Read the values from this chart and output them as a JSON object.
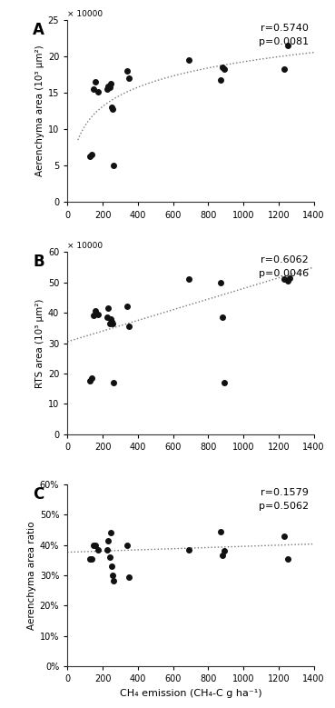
{
  "panel_A": {
    "label": "A",
    "x": [
      130,
      140,
      150,
      160,
      175,
      225,
      230,
      240,
      245,
      250,
      255,
      260,
      340,
      350,
      690,
      870,
      880,
      890,
      1230,
      1250
    ],
    "y": [
      6.3,
      6.5,
      15.5,
      16.5,
      15.2,
      15.5,
      15.9,
      15.8,
      16.2,
      13.0,
      12.8,
      5.0,
      18.0,
      17.0,
      19.5,
      16.8,
      18.5,
      18.3,
      18.2,
      21.5
    ],
    "r": 0.574,
    "p": 0.0081,
    "ylabel": "Aerenchyma area (10³ μm²)",
    "ylabel_scale": "× 10000",
    "ylim": [
      0,
      25
    ],
    "yticks": [
      0,
      5,
      10,
      15,
      20,
      25
    ],
    "use_log": true
  },
  "panel_B": {
    "label": "B",
    "x": [
      130,
      140,
      150,
      160,
      175,
      225,
      230,
      240,
      245,
      250,
      255,
      260,
      340,
      350,
      690,
      870,
      880,
      890,
      1230,
      1250,
      1260
    ],
    "y": [
      17.5,
      18.5,
      39.0,
      40.5,
      39.5,
      38.5,
      41.5,
      36.5,
      38.0,
      37.0,
      36.5,
      17.0,
      42.0,
      35.5,
      51.0,
      50.0,
      38.5,
      17.0,
      51.0,
      50.5,
      51.5
    ],
    "r": 0.6062,
    "p": 0.0046,
    "ylabel": "RTS area (10³ μm²)",
    "ylabel_scale": "× 10000",
    "ylim": [
      0,
      60
    ],
    "yticks": [
      0,
      10,
      20,
      30,
      40,
      50,
      60
    ],
    "trendline_x0": 0,
    "trendline_x1": 1400,
    "trendline_y0": 30.5,
    "trendline_y1": 55.0
  },
  "panel_C": {
    "label": "C",
    "x": [
      130,
      140,
      150,
      160,
      175,
      225,
      230,
      240,
      245,
      250,
      255,
      260,
      340,
      350,
      690,
      870,
      880,
      890,
      1230,
      1250
    ],
    "y": [
      0.355,
      0.355,
      0.4,
      0.4,
      0.385,
      0.385,
      0.415,
      0.36,
      0.44,
      0.33,
      0.3,
      0.283,
      0.4,
      0.295,
      0.385,
      0.445,
      0.365,
      0.38,
      0.43,
      0.355
    ],
    "r": 0.1579,
    "p": 0.5062,
    "ylabel": "Aerenchyma area ratio",
    "ylim": [
      0,
      0.6
    ],
    "yticks": [
      0,
      0.1,
      0.2,
      0.3,
      0.4,
      0.5,
      0.6
    ],
    "trendline_x0": 0,
    "trendline_x1": 1400,
    "trendline_y0": 0.376,
    "trendline_y1": 0.403,
    "xlabel": "CH₄ emission (CH₄-C g ha⁻¹)"
  },
  "xlim": [
    0,
    1400
  ],
  "xticks": [
    0,
    200,
    400,
    600,
    800,
    1000,
    1200,
    1400
  ],
  "dot_color": "#111111",
  "dot_size": 16,
  "trendline_color": "#777777",
  "bg_color": "#ffffff"
}
